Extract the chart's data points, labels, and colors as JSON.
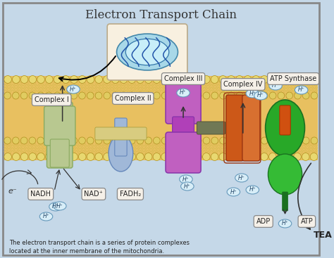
{
  "title": "Electron Transport Chain",
  "bg_outer": "#c5d8e8",
  "bg_membrane": "#e8c060",
  "text_bottom1": "The electron transport chain is a series of protein complexes",
  "text_bottom2": "located at the inner membrane of the mitochondria.",
  "label_complex1": "Complex I",
  "label_complex2": "Complex II",
  "label_complex3": "Complex III",
  "label_complex4": "Complex IV",
  "label_atp": "ATP Synthase",
  "label_nadh": "NADH",
  "label_nad": "NAD⁺",
  "label_fadh2": "FADH₂",
  "label_adp": "ADP",
  "label_atp2": "ATP",
  "label_tea": "TEA",
  "label_e": "e⁻",
  "complex1_color": "#b8c890",
  "complex1_dark": "#8aaa60",
  "complex2_color": "#a0b8d8",
  "complex2_dark": "#6688bb",
  "complex3_color": "#c060c0",
  "complex3_dark": "#8833aa",
  "complex4_color": "#cc5518",
  "complex4_dark": "#993310",
  "atp_color_top": "#2db02d",
  "atp_color_bot": "#38c838",
  "atp_stalk": "#d05010",
  "figsize": [
    4.74,
    3.67
  ],
  "dpi": 100
}
